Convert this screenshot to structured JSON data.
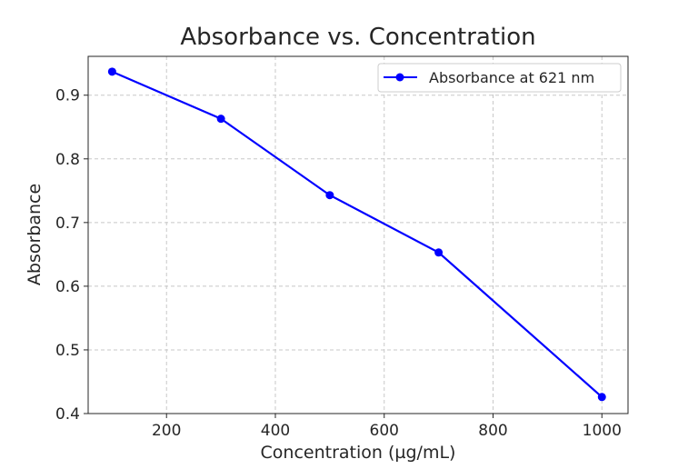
{
  "chart_data": {
    "type": "line",
    "title": "Absorbance vs. Concentration",
    "xlabel": "Concentration (µg/mL)",
    "ylabel": "Absorbance",
    "x": [
      100,
      300,
      500,
      700,
      1000
    ],
    "series": [
      {
        "name": "Absorbance at 621 nm",
        "values": [
          0.937,
          0.863,
          0.743,
          0.653,
          0.426
        ],
        "color": "#0000ff",
        "marker": "circle"
      }
    ],
    "xlim": [
      56,
      1048
    ],
    "ylim": [
      0.4,
      0.961
    ],
    "xticks": [
      200,
      400,
      600,
      800,
      1000
    ],
    "xtick_labels": [
      "200",
      "400",
      "600",
      "800",
      "1000"
    ],
    "yticks": [
      0.4,
      0.5,
      0.6,
      0.7,
      0.8,
      0.9
    ],
    "ytick_labels": [
      "0.4",
      "0.5",
      "0.6",
      "0.7",
      "0.8",
      "0.9"
    ],
    "grid": true,
    "legend_position": "top-right"
  }
}
